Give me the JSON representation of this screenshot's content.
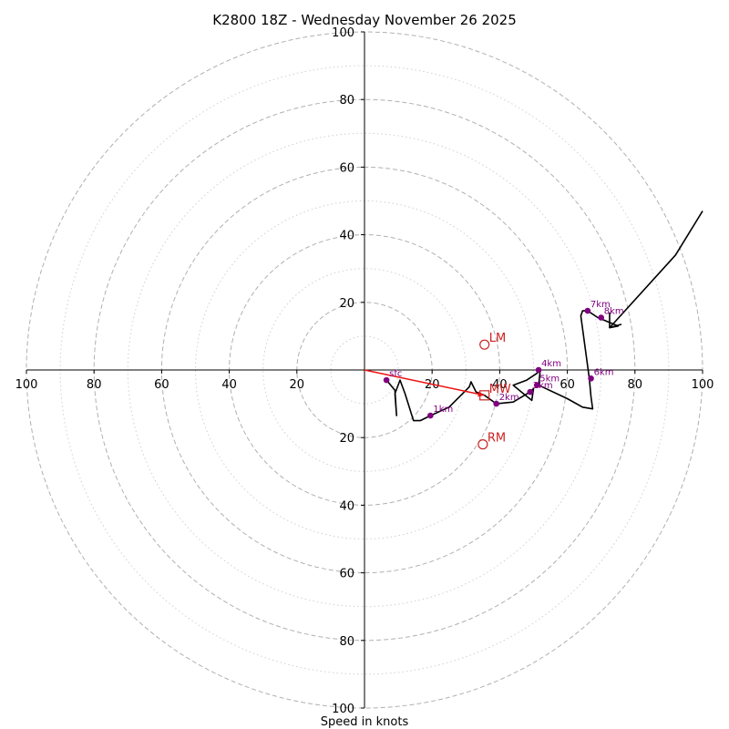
{
  "chart_data": {
    "type": "hodograph",
    "title": "K2800 18Z - Wednesday November 26 2025",
    "xlabel": "Speed in knots",
    "axis_range": [
      -100,
      100
    ],
    "major_rings": [
      20,
      40,
      60,
      80,
      100
    ],
    "minor_rings": [
      10,
      30,
      50,
      70,
      90
    ],
    "x_tick_labels": [
      "100",
      "80",
      "60",
      "40",
      "20",
      "20",
      "40",
      "60",
      "80",
      "100"
    ],
    "x_tick_values": [
      -100,
      -80,
      -60,
      -40,
      -20,
      20,
      40,
      60,
      80,
      100
    ],
    "y_tick_labels": [
      "100",
      "80",
      "60",
      "40",
      "20",
      "20",
      "40",
      "60",
      "80",
      "100"
    ],
    "y_tick_values": [
      100,
      80,
      60,
      40,
      20,
      -20,
      -40,
      -60,
      -80,
      -100
    ],
    "hodograph_line": [
      [
        6.5,
        -3.0
      ],
      [
        9.0,
        -6.0
      ],
      [
        9.5,
        -13.5
      ],
      [
        9.0,
        -7.0
      ],
      [
        10.5,
        -3.0
      ],
      [
        12.0,
        -7.0
      ],
      [
        14.5,
        -15.0
      ],
      [
        16.5,
        -15.0
      ],
      [
        19.5,
        -13.5
      ],
      [
        25.0,
        -11.0
      ],
      [
        31.0,
        -5.0
      ],
      [
        31.5,
        -3.5
      ],
      [
        33.0,
        -6.5
      ],
      [
        35.5,
        -7.5
      ],
      [
        39.0,
        -10.0
      ],
      [
        44.0,
        -9.5
      ],
      [
        49.0,
        -6.5
      ],
      [
        50.0,
        -5.5
      ],
      [
        49.5,
        -9.0
      ],
      [
        47.0,
        -7.0
      ],
      [
        44.0,
        -4.5
      ],
      [
        48.0,
        -3.0
      ],
      [
        51.0,
        -1.0
      ],
      [
        52.0,
        0.0
      ],
      [
        51.5,
        -4.5
      ],
      [
        60.0,
        -8.5
      ],
      [
        64.5,
        -11.0
      ],
      [
        67.5,
        -11.5
      ],
      [
        67.0,
        -8.0
      ],
      [
        66.5,
        -2.5
      ],
      [
        64.0,
        16.0
      ],
      [
        64.5,
        17.5
      ],
      [
        66.0,
        17.5
      ],
      [
        69.0,
        15.5
      ],
      [
        75.0,
        13.0
      ],
      [
        72.5,
        12.5
      ],
      [
        92.0,
        34.0
      ],
      [
        100.0,
        47.0
      ]
    ],
    "arrow_tip": [
      72.5,
      12.5
    ],
    "arrow_barbs": [
      [
        72.5,
        17.0
      ],
      [
        76.0,
        13.5
      ]
    ],
    "height_points": [
      {
        "label": "sfc",
        "u": 6.5,
        "v": -3.0
      },
      {
        "label": "1km",
        "u": 19.5,
        "v": -13.5
      },
      {
        "label": "2km",
        "u": 39.0,
        "v": -10.0
      },
      {
        "label": "3km",
        "u": 49.0,
        "v": -6.5
      },
      {
        "label": "4km",
        "u": 51.5,
        "v": 0.0
      },
      {
        "label": "5km",
        "u": 51.0,
        "v": -4.5
      },
      {
        "label": "6km",
        "u": 67.0,
        "v": -2.5
      },
      {
        "label": "7km",
        "u": 66.0,
        "v": 17.5
      },
      {
        "label": "8km",
        "u": 70.0,
        "v": 15.5
      }
    ],
    "motion_vector": {
      "from": [
        0,
        0
      ],
      "to": [
        35.5,
        -7.5
      ],
      "color": "#ee1111"
    },
    "storm_motions": [
      {
        "label": "LM",
        "u": 35.5,
        "v": 7.5,
        "marker": "circle"
      },
      {
        "label": "MW",
        "u": 35.5,
        "v": -7.5,
        "marker": "square"
      },
      {
        "label": "RM",
        "u": 35.0,
        "v": -22.0,
        "marker": "circle"
      }
    ],
    "colors": {
      "hodograph": "#000000",
      "height_points": "#800080",
      "storm_motion": "#cc2222",
      "rings": "#b0b0b0"
    }
  }
}
